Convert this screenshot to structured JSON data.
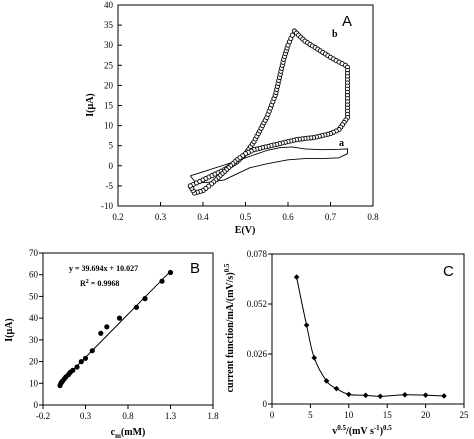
{
  "chart_data": [
    {
      "panel": "A",
      "type": "line",
      "xlabel": "E(V)",
      "ylabel": "I(µA)",
      "xlim": [
        0.2,
        0.8
      ],
      "ylim": [
        -10,
        40
      ],
      "xticks": [
        "0.2",
        "0.3",
        "0.4",
        "0.5",
        "0.6",
        "0.7",
        "0.8"
      ],
      "yticks": [
        "-10",
        "-5",
        "0",
        "5",
        "10",
        "15",
        "20",
        "25",
        "30",
        "35",
        "40"
      ],
      "series": [
        {
          "name": "a",
          "marker": "none",
          "x": [
            0.37,
            0.4,
            0.45,
            0.5,
            0.55,
            0.58,
            0.61,
            0.64,
            0.68,
            0.72,
            0.74,
            0.74,
            0.72,
            0.68,
            0.64,
            0.6,
            0.55,
            0.51,
            0.48,
            0.45,
            0.42,
            0.4,
            0.38,
            0.37
          ],
          "y": [
            -2.5,
            -1.5,
            0.2,
            2.0,
            3.8,
            4.5,
            4.7,
            4.2,
            4.0,
            4.1,
            4.2,
            3.0,
            2.0,
            1.8,
            1.8,
            1.5,
            0.5,
            -0.5,
            -2.0,
            -3.5,
            -4.0,
            -4.2,
            -3.8,
            -2.5
          ]
        },
        {
          "name": "b",
          "marker": "open-circle",
          "x": [
            0.37,
            0.4,
            0.45,
            0.48,
            0.5,
            0.52,
            0.55,
            0.57,
            0.58,
            0.59,
            0.6,
            0.61,
            0.615,
            0.62,
            0.64,
            0.67,
            0.7,
            0.72,
            0.735,
            0.74,
            0.74,
            0.72,
            0.7,
            0.68,
            0.66,
            0.64,
            0.62,
            0.6,
            0.58,
            0.56,
            0.54,
            0.52,
            0.5,
            0.48,
            0.46,
            0.44,
            0.42,
            0.4,
            0.38,
            0.37
          ],
          "y": [
            -5.0,
            -3.5,
            -1.0,
            1.0,
            3.0,
            6.0,
            12.0,
            17.5,
            22.0,
            26.5,
            30.0,
            32.5,
            33.5,
            33.0,
            31.0,
            29.0,
            27.0,
            25.8,
            25.0,
            24.5,
            12.0,
            9.0,
            8.0,
            7.5,
            7.0,
            6.8,
            6.5,
            6.0,
            5.5,
            5.0,
            4.5,
            4.0,
            3.0,
            1.5,
            -0.5,
            -2.5,
            -4.5,
            -6.2,
            -6.8,
            -5.0
          ]
        }
      ]
    },
    {
      "panel": "B",
      "type": "scatter",
      "xlabel": "cm(mM)",
      "xlabel_main": "c",
      "xlabel_sub": "m",
      "xlabel_rest": "(mM)",
      "ylabel": "I(µA)",
      "xlim": [
        -0.2,
        1.8
      ],
      "ylim": [
        0,
        70
      ],
      "xticks": [
        "-0.2",
        "0.3",
        "0.8",
        "1.3",
        "1.8"
      ],
      "yticks": [
        "0",
        "10",
        "20",
        "30",
        "40",
        "50",
        "60",
        "70"
      ],
      "equation": "y = 39.694x + 10.027",
      "r2_label": "R",
      "r2_sup": "2",
      "r2_value": " = 0.9968",
      "fit": {
        "slope": 39.694,
        "intercept": 10.027,
        "x_range": [
          0.0,
          1.3
        ]
      },
      "series": [
        {
          "name": "",
          "x": [
            0.0,
            0.01,
            0.02,
            0.03,
            0.05,
            0.07,
            0.1,
            0.12,
            0.15,
            0.2,
            0.25,
            0.3,
            0.38,
            0.48,
            0.55,
            0.7,
            0.9,
            1.0,
            1.2,
            1.3
          ],
          "y": [
            9.0,
            10.0,
            10.5,
            11.0,
            12.0,
            13.0,
            14.0,
            15.0,
            16.0,
            17.5,
            20.0,
            21.5,
            25.0,
            33.0,
            36.0,
            40.0,
            45.0,
            49.0,
            57.0,
            61.0
          ]
        }
      ]
    },
    {
      "panel": "C",
      "type": "line",
      "xlabel": "v0.5/(mV s-1)0.5",
      "xlabel_parts": [
        "v",
        "0.5",
        "/(mV s",
        "-1",
        ")",
        "0.5"
      ],
      "ylabel": "current function/mA/(mV/s)0.5",
      "ylabel_main": "current function/mA/(mV/s)",
      "ylabel_sup": "0.5",
      "xlim": [
        0,
        25
      ],
      "ylim": [
        0,
        0.078
      ],
      "xticks": [
        "0",
        "5",
        "10",
        "15",
        "20",
        "25"
      ],
      "yticks": [
        "0",
        "0.026",
        "0.052",
        "0.078"
      ],
      "series": [
        {
          "name": "",
          "x": [
            3.2,
            4.5,
            5.5,
            7.1,
            8.4,
            10.0,
            12.2,
            14.1,
            17.3,
            20.0,
            22.4
          ],
          "y": [
            0.066,
            0.041,
            0.024,
            0.012,
            0.008,
            0.005,
            0.0045,
            0.004,
            0.0048,
            0.0046,
            0.0042
          ]
        }
      ]
    }
  ],
  "annotations": {
    "panel_a": "A",
    "panel_b": "B",
    "panel_c": "C",
    "curve_a_label": "a",
    "curve_b_label": "b"
  }
}
